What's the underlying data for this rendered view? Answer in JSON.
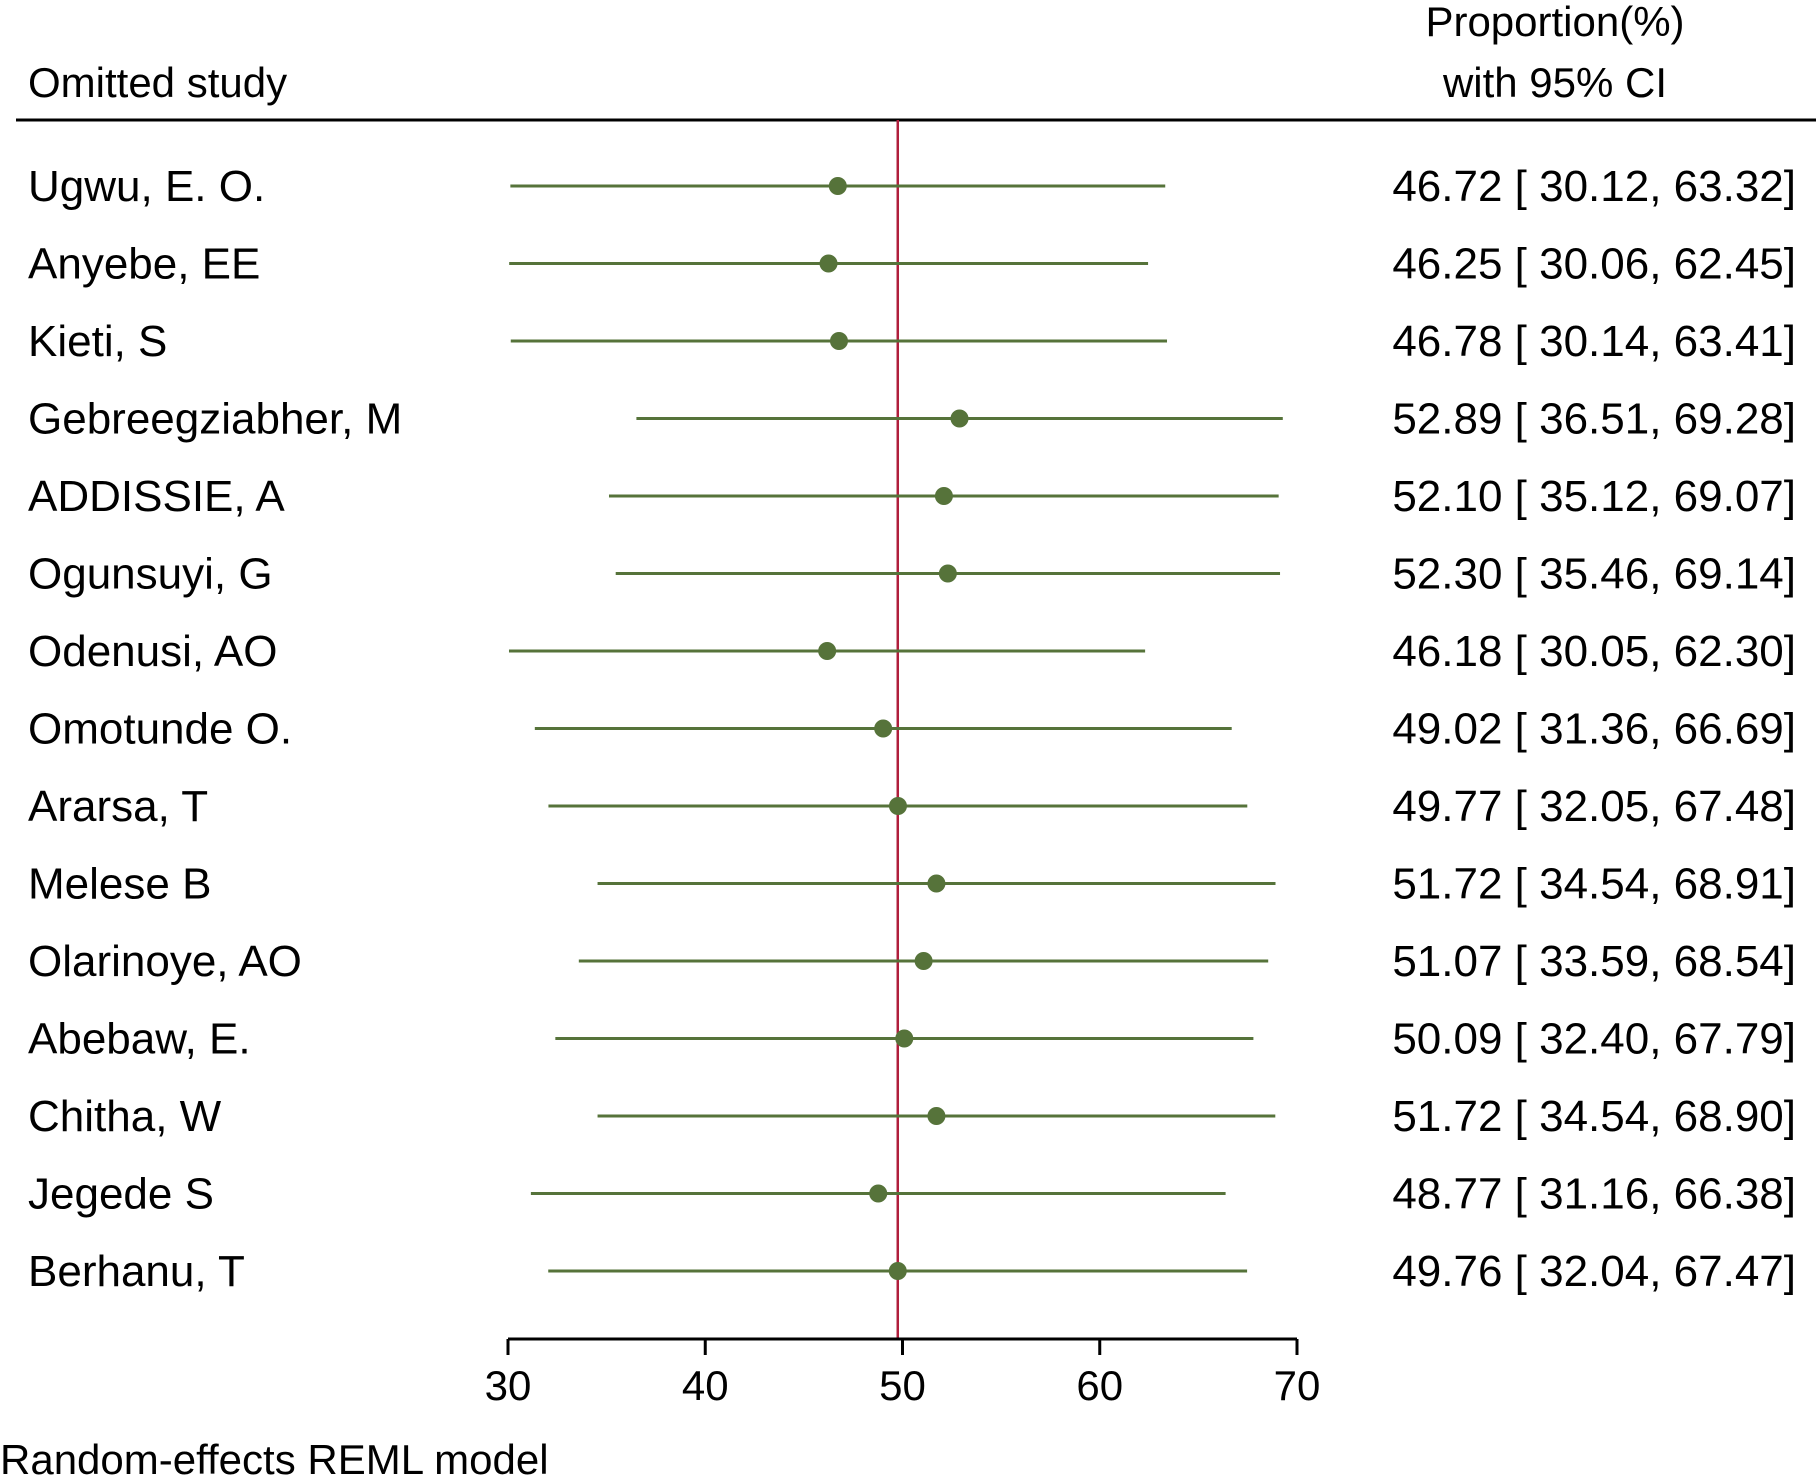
{
  "chart_data": {
    "type": "forest",
    "title": "",
    "header_left": "Omitted study",
    "header_right_line1": "Proportion(%)",
    "header_right_line2": "with 95% CI",
    "xlabel": "",
    "ylabel": "",
    "xlim": [
      30,
      70
    ],
    "x_ticks": [
      30,
      40,
      50,
      60,
      70
    ],
    "x_tick_labels": [
      "30",
      "40",
      "50",
      "60",
      "70"
    ],
    "reference_line": 49.76,
    "footnote": "Random-effects REML model",
    "studies": [
      {
        "name": "Ugwu, E. O.",
        "estimate": 46.72,
        "lower": 30.12,
        "upper": 63.32,
        "ci_text": "46.72 [ 30.12,  63.32]"
      },
      {
        "name": "Anyebe, EE",
        "estimate": 46.25,
        "lower": 30.06,
        "upper": 62.45,
        "ci_text": "46.25 [ 30.06,  62.45]"
      },
      {
        "name": "Kieti, S",
        "estimate": 46.78,
        "lower": 30.14,
        "upper": 63.41,
        "ci_text": "46.78 [ 30.14,  63.41]"
      },
      {
        "name": "Gebreegziabher, M",
        "estimate": 52.89,
        "lower": 36.51,
        "upper": 69.28,
        "ci_text": "52.89 [ 36.51,  69.28]"
      },
      {
        "name": "ADDISSIE, A",
        "estimate": 52.1,
        "lower": 35.12,
        "upper": 69.07,
        "ci_text": "52.10 [ 35.12,  69.07]"
      },
      {
        "name": "Ogunsuyi, G",
        "estimate": 52.3,
        "lower": 35.46,
        "upper": 69.14,
        "ci_text": "52.30 [ 35.46,  69.14]"
      },
      {
        "name": "Odenusi, AO",
        "estimate": 46.18,
        "lower": 30.05,
        "upper": 62.3,
        "ci_text": "46.18 [ 30.05,  62.30]"
      },
      {
        "name": "Omotunde O.",
        "estimate": 49.02,
        "lower": 31.36,
        "upper": 66.69,
        "ci_text": "49.02 [ 31.36,  66.69]"
      },
      {
        "name": "Ararsa, T",
        "estimate": 49.77,
        "lower": 32.05,
        "upper": 67.48,
        "ci_text": "49.77 [ 32.05,  67.48]"
      },
      {
        "name": "Melese B",
        "estimate": 51.72,
        "lower": 34.54,
        "upper": 68.91,
        "ci_text": "51.72 [ 34.54,  68.91]"
      },
      {
        "name": "Olarinoye, AO",
        "estimate": 51.07,
        "lower": 33.59,
        "upper": 68.54,
        "ci_text": "51.07 [ 33.59,  68.54]"
      },
      {
        "name": "Abebaw, E.",
        "estimate": 50.09,
        "lower": 32.4,
        "upper": 67.79,
        "ci_text": "50.09 [ 32.40,  67.79]"
      },
      {
        "name": "Chitha, W",
        "estimate": 51.72,
        "lower": 34.54,
        "upper": 68.9,
        "ci_text": "51.72 [ 34.54,  68.90]"
      },
      {
        "name": "Jegede S",
        "estimate": 48.77,
        "lower": 31.16,
        "upper": 66.38,
        "ci_text": "48.77 [ 31.16,  66.38]"
      },
      {
        "name": "Berhanu, T",
        "estimate": 49.76,
        "lower": 32.04,
        "upper": 67.47,
        "ci_text": "49.76 [ 32.04,  67.47]"
      }
    ]
  },
  "colors": {
    "point": "#56733a",
    "ci_line": "#56733a",
    "reference_line": "#b01e3c",
    "text": "#000000",
    "axis": "#000000"
  }
}
